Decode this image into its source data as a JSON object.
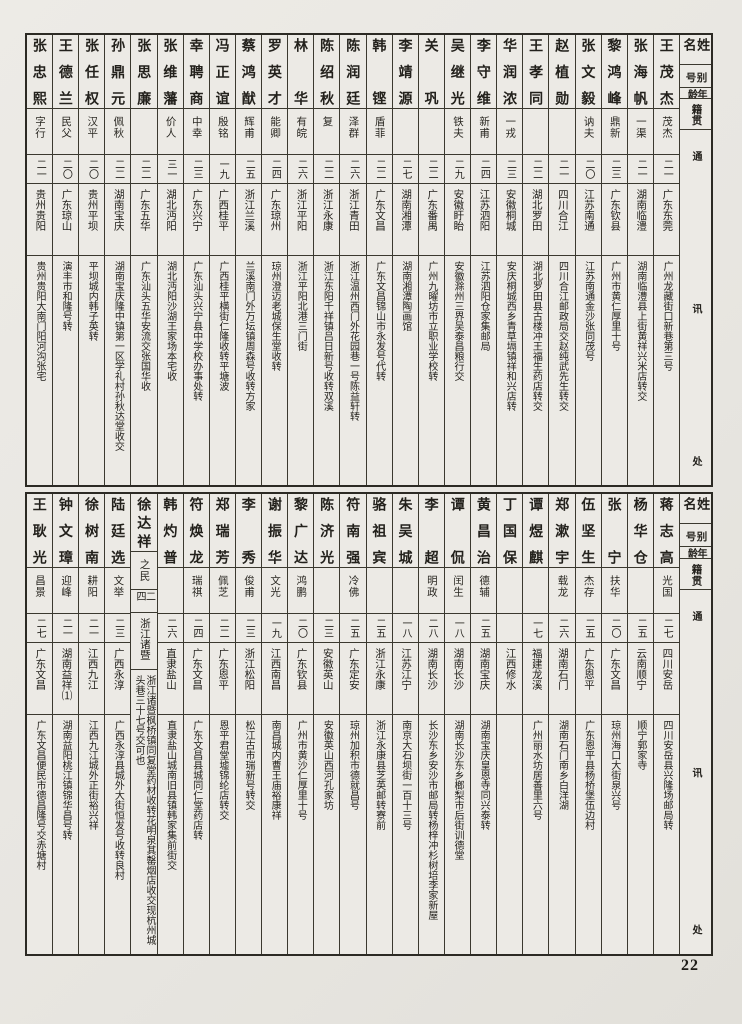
{
  "page": {
    "number": "22",
    "paper_color": "#e8e6e1",
    "line_color": "#3b392f",
    "ink_color": "#23211c"
  },
  "headers": {
    "name": "姓名",
    "alias": "别号",
    "age": "年龄",
    "origin": "籍贯",
    "address": "通讯处"
  },
  "tables": [
    {
      "entries": [
        {
          "name": "王茂杰",
          "alias": "茂杰",
          "age": "二一",
          "origin": "广东东莞",
          "address": "广州龙藏街口新巷第三号"
        },
        {
          "name": "张海帆",
          "alias": "一渠",
          "age": "二一",
          "origin": "湖南临澧",
          "address": "湖南临澧县上街黄祥兴米店转交"
        },
        {
          "name": "黎鸿峰",
          "alias": "鼎新",
          "age": "二三",
          "origin": "广东钦县",
          "address": "广州市黄仁厚里十号"
        },
        {
          "name": "张文毅",
          "alias": "讷夫",
          "age": "二〇",
          "origin": "江苏南通",
          "address": "江苏南通金沙张同茂号"
        },
        {
          "name": "赵植勋",
          "alias": "",
          "age": "二一",
          "origin": "四川合江",
          "address": "四川合江邮政局交赵纯武先生转交"
        },
        {
          "name": "王孝同",
          "alias": "",
          "age": "二二",
          "origin": "湖北罗田",
          "address": "湖北罗田县古楼冲王福生药店转交"
        },
        {
          "name": "华润浓",
          "alias": "一戎",
          "age": "二三",
          "origin": "安徽桐城",
          "address": "安庆桐城西乡青草塥镇祥和兴店转"
        },
        {
          "name": "李守维",
          "alias": "新甫",
          "age": "二四",
          "origin": "江苏泗阳",
          "address": "江苏泗阳仓家集邮局"
        },
        {
          "name": "吴继光",
          "alias": "铁夫",
          "age": "二九",
          "origin": "安徽盱眙",
          "address": "安徽滁州三界吴泰昌粮行交"
        },
        {
          "name": "关巩",
          "alias": "",
          "age": "二二",
          "origin": "广东番禺",
          "address": "广州九曜坊市立职业学校转"
        },
        {
          "name": "李靖源",
          "alias": "",
          "age": "二七",
          "origin": "湖南湘潭",
          "address": "湖南湘潭陶画馆"
        },
        {
          "name": "韩铿",
          "alias": "盾菲",
          "age": "二二",
          "origin": "广东文昌",
          "address": "广东文昌锦山市永发号代转"
        },
        {
          "name": "陈润廷",
          "alias": "泽群",
          "age": "二六",
          "origin": "浙江青田",
          "address": "浙江温州西门外花园巷一号陈益轩转"
        },
        {
          "name": "陈绍秋",
          "alias": "复",
          "age": "二二",
          "origin": "浙江永康",
          "address": "浙江东阳千祥镇吕日新号收转双溪"
        },
        {
          "name": "林华",
          "alias": "有皖",
          "age": "二六",
          "origin": "浙江平阳",
          "address": "浙江平阳北港三门街"
        },
        {
          "name": "罗英才",
          "alias": "能卿",
          "age": "二四",
          "origin": "广东琼州",
          "address": "琼州澄迈老城保生堂收转"
        },
        {
          "name": "蔡鸿猷",
          "alias": "辉甫",
          "age": "二五",
          "origin": "浙江兰溪",
          "address": "兰溪南门外万坛镇周森号收转方家"
        },
        {
          "name": "冯正谊",
          "alias": "殷铭",
          "age": "一九",
          "origin": "广西桂平",
          "address": "广西桂平横街仁隆收转平塘波"
        },
        {
          "name": "幸聘商",
          "alias": "中幸",
          "age": "二三",
          "origin": "广东兴宁",
          "address": "广东汕头兴宁县中学校办事处转"
        },
        {
          "name": "张维藩",
          "alias": "价人",
          "age": "三一",
          "origin": "湖北沔阳",
          "address": "湖北沔阳沙湖王家场本宅收"
        },
        {
          "name": "张思廉",
          "alias": "",
          "age": "二二",
          "origin": "广东五华",
          "address": "广东汕头五华安流交张国华收"
        },
        {
          "name": "孙鼎元",
          "alias": "佩秋",
          "age": "二二",
          "origin": "湖南宝庆",
          "address": "湖南宝庆隆中镇第一区学礼村孙秋达堂收交"
        },
        {
          "name": "张任权",
          "alias": "汉平",
          "age": "二〇",
          "origin": "贵州平坝",
          "address": "平坝城内韩子英转"
        },
        {
          "name": "王德兰",
          "alias": "民父",
          "age": "二〇",
          "origin": "广东琼山",
          "address": "演丰市和隆号转"
        },
        {
          "name": "张忠熙",
          "alias": "字行",
          "age": "二一",
          "origin": "贵州贵阳",
          "address": "贵州贵阳大南门阳河沟张宅"
        }
      ]
    },
    {
      "entries": [
        {
          "name": "蒋志高",
          "alias": "光国",
          "age": "二七",
          "origin": "四川安岳",
          "address": "四川安岳县兴隆场邮局转"
        },
        {
          "name": "杨华仓",
          "alias": "",
          "age": "二五",
          "origin": "云南顺宁",
          "address": "顺宁郭家寺"
        },
        {
          "name": "张宁",
          "alias": "扶华",
          "age": "二〇",
          "origin": "广东文昌",
          "address": "琼州海口大街泉兴号"
        },
        {
          "name": "伍坚生",
          "alias": "杰存",
          "age": "二五",
          "origin": "广东恩平",
          "address": "广东恩平县杨桥堡伍边村"
        },
        {
          "name": "郑漱宇",
          "alias": "载龙",
          "age": "二六",
          "origin": "湖南石门",
          "address": "湖南石门南乡白洋湖"
        },
        {
          "name": "谭煜麒",
          "alias": "",
          "age": "一七",
          "origin": "福建龙溪",
          "address": "广州丽水坊居善里六号"
        },
        {
          "name": "丁国保",
          "alias": "",
          "age": "",
          "origin": "江西修水",
          "address": ""
        },
        {
          "name": "黄昌治",
          "alias": "德辅",
          "age": "二五",
          "origin": "湖南宝庆",
          "address": "湖南宝庆皇恩寺同兴泰转"
        },
        {
          "name": "谭侃",
          "alias": "闰生",
          "age": "一八",
          "origin": "湖南长沙",
          "address": "湖南长沙东乡榔梨市后街训德堂"
        },
        {
          "name": "李超",
          "alias": "明政",
          "age": "二八",
          "origin": "湖南长沙",
          "address": "长沙东乡安沙市邮局转杨梓冲杉树培李家新屋"
        },
        {
          "name": "朱吴城",
          "alias": "",
          "age": "一八",
          "origin": "江苏江宁",
          "address": "南京大石坝街一百十三号"
        },
        {
          "name": "骆祖宾",
          "alias": "",
          "age": "二五",
          "origin": "浙江永康",
          "address": "浙江永康县芝英邮转寮前"
        },
        {
          "name": "符南强",
          "alias": "冷佛",
          "age": "二五",
          "origin": "广东定安",
          "address": "琼州加积市德就昌号"
        },
        {
          "name": "陈济光",
          "alias": "",
          "age": "二三",
          "origin": "安徽英山",
          "address": "安徽英山西河孔家坊"
        },
        {
          "name": "黎广达",
          "alias": "鸿鹏",
          "age": "二〇",
          "origin": "广东钦县",
          "address": "广州市黄沙仁厚里十号"
        },
        {
          "name": "谢振华",
          "alias": "文光",
          "age": "一九",
          "origin": "江西南昌",
          "address": "南昌城内曹王庙裕康祥"
        },
        {
          "name": "李秀",
          "alias": "俊甫",
          "age": "二三",
          "origin": "浙江松阳",
          "address": "松江古市瑞新号转交"
        },
        {
          "name": "郑瑞芳",
          "alias": "佩芝",
          "age": "二二",
          "origin": "广东恩平",
          "address": "恩平君堂墟锦纶店转交"
        },
        {
          "name": "符焕龙",
          "alias": "瑞祺",
          "age": "二四",
          "origin": "广东文昌",
          "address": "广东文昌县城同仁堂药店转"
        },
        {
          "name": "韩灼普",
          "alias": "",
          "age": "二六",
          "origin": "直隶盐山",
          "address": "直隶盐山城南旧县镇韩家集前街交"
        },
        {
          "name": "徐达祥",
          "alias": "之民",
          "age": "二四",
          "origin": "浙江诸暨",
          "address": "浙江诸暨枫桥镇同复堂药材收转花明泉其罄烟店收交现杭州城头巷三十七号交可也"
        },
        {
          "name": "陆廷选",
          "alias": "文举",
          "age": "二三",
          "origin": "广西永淳",
          "address": "广西永淳县城外大街恒发号收转良村"
        },
        {
          "name": "徐树南",
          "alias": "耕阳",
          "age": "二一",
          "origin": "江西九江",
          "address": "江西九江城外正街裕兴祥"
        },
        {
          "name": "钟文璋",
          "alias": "迎峰",
          "age": "二一",
          "origin": "湖南益祥⑴",
          "address": "湖南益阳桃江镇锦华昌号转"
        },
        {
          "name": "王耿光",
          "alias": "昌景",
          "age": "二七",
          "origin": "广东文昌",
          "address": "广东文昌便民市德昌隆号交赤塘村"
        }
      ]
    }
  ]
}
